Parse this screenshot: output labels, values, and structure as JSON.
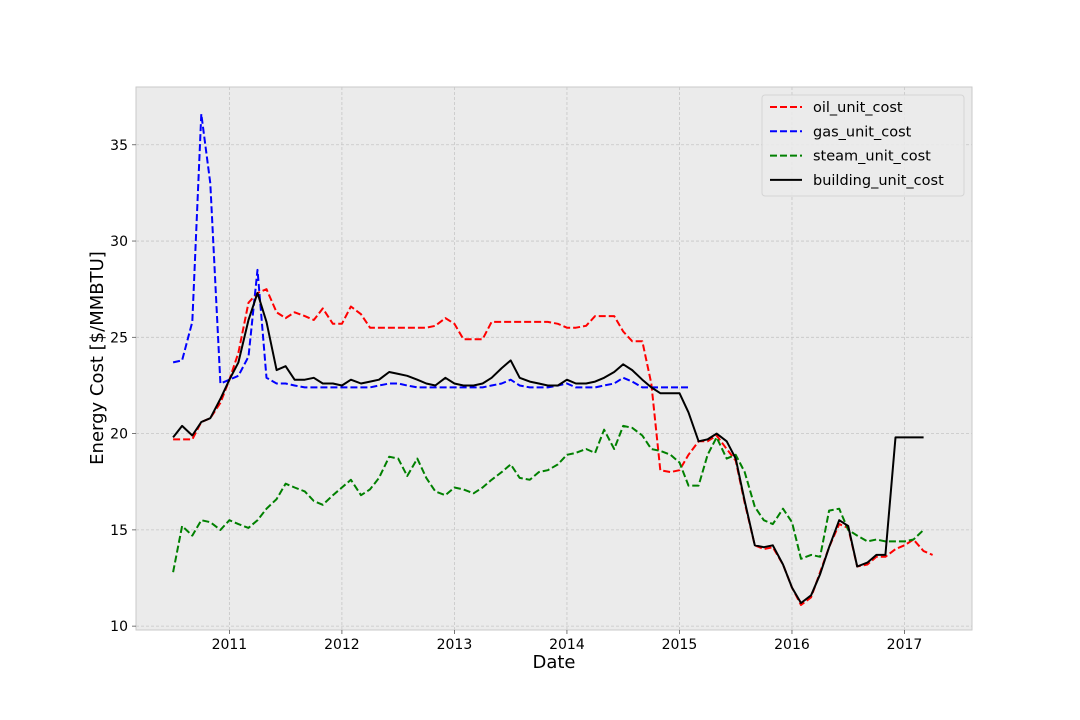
{
  "chart_data": {
    "type": "line",
    "title": "",
    "xlabel": "Date",
    "ylabel": "Energy Cost [$/MMBTU]",
    "xlim": [
      2010.17,
      2017.6
    ],
    "ylim": [
      9.8,
      38.0
    ],
    "x_ticks": [
      2011,
      2012,
      2013,
      2014,
      2015,
      2016,
      2017
    ],
    "x_tick_labels": [
      "2011",
      "2012",
      "2013",
      "2014",
      "2015",
      "2016",
      "2017"
    ],
    "y_ticks": [
      10,
      15,
      20,
      25,
      30,
      35
    ],
    "y_tick_labels": [
      "10",
      "15",
      "20",
      "25",
      "30",
      "35"
    ],
    "grid": true,
    "legend_position": "upper right",
    "series": [
      {
        "name": "oil_unit_cost",
        "color": "#ff0000",
        "dash": "dashed",
        "x": [
          2010.5,
          2010.58,
          2010.67,
          2010.75,
          2010.83,
          2010.92,
          2011.0,
          2011.08,
          2011.17,
          2011.25,
          2011.33,
          2011.42,
          2011.5,
          2011.58,
          2011.67,
          2011.75,
          2011.83,
          2011.92,
          2012.0,
          2012.08,
          2012.17,
          2012.25,
          2012.33,
          2012.42,
          2012.5,
          2012.58,
          2012.67,
          2012.75,
          2012.83,
          2012.92,
          2013.0,
          2013.08,
          2013.17,
          2013.25,
          2013.33,
          2013.42,
          2013.5,
          2013.58,
          2013.67,
          2013.75,
          2013.83,
          2013.92,
          2014.0,
          2014.08,
          2014.17,
          2014.25,
          2014.33,
          2014.42,
          2014.5,
          2014.58,
          2014.67,
          2014.75,
          2014.83,
          2014.92,
          2015.0,
          2015.08,
          2015.17,
          2015.25,
          2015.33,
          2015.42,
          2015.5,
          2015.58,
          2015.67,
          2015.75,
          2015.83,
          2015.92,
          2016.0,
          2016.08,
          2016.17,
          2016.25,
          2016.33,
          2016.42,
          2016.5,
          2016.58,
          2016.67,
          2016.75,
          2016.83,
          2016.92,
          2017.0,
          2017.08,
          2017.17,
          2017.25
        ],
        "y": [
          19.7,
          19.7,
          19.7,
          20.6,
          20.8,
          21.6,
          22.8,
          24.2,
          26.8,
          27.3,
          27.5,
          26.3,
          26.0,
          26.3,
          26.1,
          25.9,
          26.5,
          25.7,
          25.7,
          26.6,
          26.2,
          25.5,
          25.5,
          25.5,
          25.5,
          25.5,
          25.5,
          25.5,
          25.6,
          26.0,
          25.7,
          24.9,
          24.9,
          24.9,
          25.8,
          25.8,
          25.8,
          25.8,
          25.8,
          25.8,
          25.8,
          25.7,
          25.5,
          25.5,
          25.6,
          26.1,
          26.1,
          26.1,
          25.3,
          24.8,
          24.8,
          22.6,
          18.1,
          18.0,
          18.1,
          18.9,
          19.6,
          19.6,
          19.9,
          19.2,
          18.6,
          16.4,
          14.2,
          14.0,
          14.1,
          13.2,
          12.0,
          11.1,
          11.5,
          12.8,
          14.1,
          15.3,
          15.1,
          13.1,
          13.2,
          13.6,
          13.6,
          14.0,
          14.2,
          14.5,
          13.9,
          13.7
        ]
      },
      {
        "name": "gas_unit_cost",
        "color": "#0000ff",
        "dash": "dashed",
        "x": [
          2010.5,
          2010.58,
          2010.67,
          2010.75,
          2010.83,
          2010.92,
          2011.0,
          2011.08,
          2011.17,
          2011.25,
          2011.33,
          2011.42,
          2011.5,
          2011.58,
          2011.67,
          2011.75,
          2011.83,
          2011.92,
          2012.0,
          2012.08,
          2012.17,
          2012.25,
          2012.33,
          2012.42,
          2012.5,
          2012.58,
          2012.67,
          2012.75,
          2012.83,
          2012.92,
          2013.0,
          2013.08,
          2013.17,
          2013.25,
          2013.33,
          2013.42,
          2013.5,
          2013.58,
          2013.67,
          2013.75,
          2013.83,
          2013.92,
          2014.0,
          2014.08,
          2014.17,
          2014.25,
          2014.33,
          2014.42,
          2014.5,
          2014.58,
          2014.67,
          2014.75,
          2014.83,
          2014.92,
          2015.0,
          2015.08
        ],
        "y": [
          23.7,
          23.8,
          25.8,
          36.6,
          33.0,
          22.6,
          22.8,
          23.0,
          24.0,
          28.5,
          22.9,
          22.6,
          22.6,
          22.5,
          22.4,
          22.4,
          22.4,
          22.4,
          22.4,
          22.4,
          22.4,
          22.4,
          22.5,
          22.6,
          22.6,
          22.5,
          22.4,
          22.4,
          22.4,
          22.4,
          22.4,
          22.4,
          22.4,
          22.4,
          22.5,
          22.6,
          22.8,
          22.5,
          22.4,
          22.4,
          22.4,
          22.5,
          22.6,
          22.4,
          22.4,
          22.4,
          22.5,
          22.6,
          22.9,
          22.7,
          22.4,
          22.4,
          22.4,
          22.4,
          22.4,
          22.4
        ]
      },
      {
        "name": "steam_unit_cost",
        "color": "#008000",
        "dash": "dashed",
        "x": [
          2010.5,
          2010.58,
          2010.67,
          2010.75,
          2010.83,
          2010.92,
          2011.0,
          2011.08,
          2011.17,
          2011.25,
          2011.33,
          2011.42,
          2011.5,
          2011.58,
          2011.67,
          2011.75,
          2011.83,
          2011.92,
          2012.0,
          2012.08,
          2012.17,
          2012.25,
          2012.33,
          2012.42,
          2012.5,
          2012.58,
          2012.67,
          2012.75,
          2012.83,
          2012.92,
          2013.0,
          2013.08,
          2013.17,
          2013.25,
          2013.33,
          2013.42,
          2013.5,
          2013.58,
          2013.67,
          2013.75,
          2013.83,
          2013.92,
          2014.0,
          2014.08,
          2014.17,
          2014.25,
          2014.33,
          2014.42,
          2014.5,
          2014.58,
          2014.67,
          2014.75,
          2014.83,
          2014.92,
          2015.0,
          2015.08,
          2015.17,
          2015.25,
          2015.33,
          2015.42,
          2015.5,
          2015.58,
          2015.67,
          2015.75,
          2015.83,
          2015.92,
          2016.0,
          2016.08,
          2016.17,
          2016.25,
          2016.33,
          2016.42,
          2016.5,
          2016.58,
          2016.67,
          2016.75,
          2016.83,
          2016.92,
          2017.0,
          2017.08,
          2017.17
        ],
        "y": [
          12.8,
          15.2,
          14.7,
          15.5,
          15.4,
          15.0,
          15.5,
          15.3,
          15.1,
          15.5,
          16.1,
          16.6,
          17.4,
          17.2,
          17.0,
          16.5,
          16.3,
          16.8,
          17.2,
          17.6,
          16.8,
          17.1,
          17.7,
          18.8,
          18.7,
          17.8,
          18.7,
          17.7,
          17.0,
          16.8,
          17.2,
          17.1,
          16.9,
          17.2,
          17.6,
          18.0,
          18.4,
          17.7,
          17.6,
          18.0,
          18.1,
          18.4,
          18.9,
          19.0,
          19.2,
          19.0,
          20.2,
          19.2,
          20.4,
          20.3,
          19.9,
          19.2,
          19.1,
          18.9,
          18.5,
          17.3,
          17.3,
          18.9,
          19.8,
          18.7,
          18.9,
          18.0,
          16.2,
          15.5,
          15.3,
          16.1,
          15.4,
          13.5,
          13.7,
          13.6,
          16.0,
          16.1,
          15.0,
          14.7,
          14.4,
          14.5,
          14.4,
          14.4,
          14.4,
          14.5,
          15.0
        ]
      },
      {
        "name": "building_unit_cost",
        "color": "#000000",
        "dash": "solid",
        "x": [
          2010.5,
          2010.58,
          2010.67,
          2010.75,
          2010.83,
          2010.92,
          2011.0,
          2011.08,
          2011.17,
          2011.25,
          2011.33,
          2011.42,
          2011.5,
          2011.58,
          2011.67,
          2011.75,
          2011.83,
          2011.92,
          2012.0,
          2012.08,
          2012.17,
          2012.25,
          2012.33,
          2012.42,
          2012.5,
          2012.58,
          2012.67,
          2012.75,
          2012.83,
          2012.92,
          2013.0,
          2013.08,
          2013.17,
          2013.25,
          2013.33,
          2013.42,
          2013.5,
          2013.58,
          2013.67,
          2013.75,
          2013.83,
          2013.92,
          2014.0,
          2014.08,
          2014.17,
          2014.25,
          2014.33,
          2014.42,
          2014.5,
          2014.58,
          2014.67,
          2014.75,
          2014.83,
          2014.92,
          2015.0,
          2015.08,
          2015.17,
          2015.25,
          2015.33,
          2015.42,
          2015.5,
          2015.58,
          2015.67,
          2015.75,
          2015.83,
          2015.92,
          2016.0,
          2016.08,
          2016.17,
          2016.25,
          2016.33,
          2016.42,
          2016.5,
          2016.58,
          2016.67,
          2016.75,
          2016.83,
          2016.92,
          2017.0,
          2017.08,
          2017.17
        ],
        "y": [
          19.8,
          20.4,
          19.9,
          20.6,
          20.8,
          21.8,
          22.8,
          23.7,
          25.9,
          27.3,
          25.8,
          23.3,
          23.5,
          22.8,
          22.8,
          22.9,
          22.6,
          22.6,
          22.5,
          22.8,
          22.6,
          22.7,
          22.8,
          23.2,
          23.1,
          23.0,
          22.8,
          22.6,
          22.5,
          22.9,
          22.6,
          22.5,
          22.5,
          22.6,
          22.9,
          23.4,
          23.8,
          22.9,
          22.7,
          22.6,
          22.5,
          22.5,
          22.8,
          22.6,
          22.6,
          22.7,
          22.9,
          23.2,
          23.6,
          23.3,
          22.8,
          22.4,
          22.1,
          22.1,
          22.1,
          21.1,
          19.6,
          19.7,
          20.0,
          19.6,
          18.7,
          16.5,
          14.2,
          14.1,
          14.2,
          13.2,
          12.0,
          11.2,
          11.6,
          12.7,
          14.1,
          15.5,
          15.2,
          13.1,
          13.3,
          13.7,
          13.7,
          19.8,
          19.8,
          19.8,
          19.8
        ]
      }
    ]
  }
}
